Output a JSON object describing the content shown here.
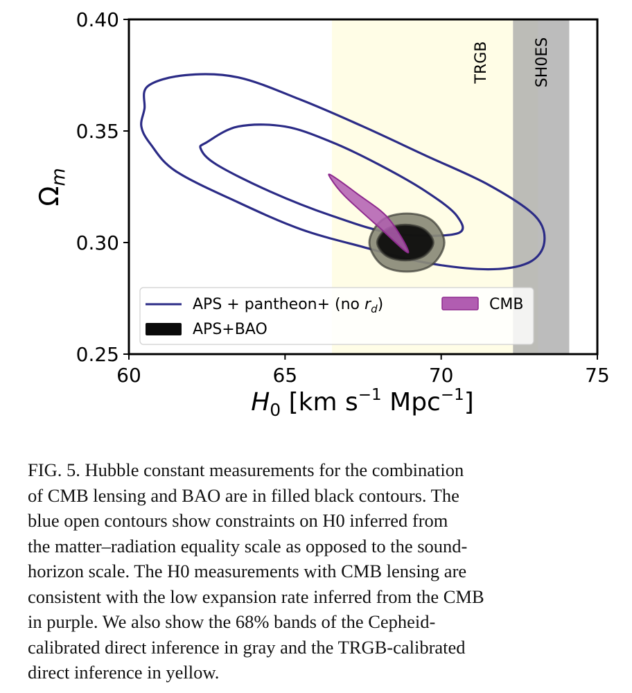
{
  "chart_data": {
    "type": "contour",
    "xlabel": "H_0 [km s^-1 Mpc^-1]",
    "ylabel": "Ω_m",
    "xlim": [
      60,
      75
    ],
    "ylim": [
      0.25,
      0.4
    ],
    "xticks": [
      60,
      65,
      70,
      75
    ],
    "xtick_labels": [
      "60",
      "65",
      "70",
      "75"
    ],
    "yticks": [
      0.25,
      0.3,
      0.35,
      0.4
    ],
    "ytick_labels": [
      "0.25",
      "0.30",
      "0.35",
      "0.40"
    ],
    "grid": false,
    "legend_position": "lower-left",
    "bands": [
      {
        "label": "TRGB",
        "x_range": [
          66.5,
          73.1
        ],
        "color": "#fffde6"
      },
      {
        "label": "SH0ES",
        "x_range": [
          72.3,
          74.1
        ],
        "color": "#a9a9a9"
      }
    ],
    "series": [
      {
        "name": "APS + pantheon+ (no r_d)",
        "kind": "open-contour",
        "color": "#2b2b86",
        "contours": [
          {
            "level": "68%",
            "points": [
              [
                62.5,
                0.345
              ],
              [
                63.5,
                0.352
              ],
              [
                65.0,
                0.352
              ],
              [
                66.5,
                0.345
              ],
              [
                68.0,
                0.335
              ],
              [
                69.5,
                0.323
              ],
              [
                70.5,
                0.312
              ],
              [
                70.5,
                0.304
              ],
              [
                68.5,
                0.304
              ],
              [
                66.5,
                0.312
              ],
              [
                64.5,
                0.323
              ],
              [
                62.8,
                0.335
              ],
              [
                62.3,
                0.342
              ]
            ]
          },
          {
            "level": "95%",
            "points": [
              [
                60.5,
                0.36
              ],
              [
                60.6,
                0.37
              ],
              [
                61.8,
                0.375
              ],
              [
                63.5,
                0.374
              ],
              [
                65.5,
                0.364
              ],
              [
                67.5,
                0.352
              ],
              [
                69.5,
                0.339
              ],
              [
                71.5,
                0.326
              ],
              [
                73.0,
                0.312
              ],
              [
                73.3,
                0.3
              ],
              [
                72.8,
                0.291
              ],
              [
                71.5,
                0.288
              ],
              [
                69.5,
                0.291
              ],
              [
                67.5,
                0.298
              ],
              [
                65.5,
                0.306
              ],
              [
                63.5,
                0.318
              ],
              [
                61.5,
                0.332
              ],
              [
                60.7,
                0.344
              ],
              [
                60.4,
                0.352
              ]
            ]
          }
        ]
      },
      {
        "name": "APS+BAO",
        "kind": "filled-contour",
        "color": "#0a0a0a",
        "contours": [
          {
            "level": "95%",
            "fill": "#8a8a78",
            "points": [
              [
                68.9,
                0.287
              ],
              [
                69.7,
                0.29
              ],
              [
                70.1,
                0.3
              ],
              [
                69.7,
                0.31
              ],
              [
                68.9,
                0.313
              ],
              [
                68.1,
                0.31
              ],
              [
                67.7,
                0.3
              ],
              [
                68.1,
                0.29
              ]
            ]
          },
          {
            "level": "68%",
            "fill": "#0a0a0a",
            "points": [
              [
                68.85,
                0.292
              ],
              [
                69.45,
                0.294
              ],
              [
                69.75,
                0.3
              ],
              [
                69.45,
                0.306
              ],
              [
                68.85,
                0.308
              ],
              [
                68.25,
                0.306
              ],
              [
                67.95,
                0.3
              ],
              [
                68.25,
                0.294
              ]
            ]
          }
        ]
      },
      {
        "name": "CMB",
        "kind": "filled-contour",
        "color": "#9b2e9b",
        "contours": [
          {
            "level": "95%",
            "fill": "#b15db1",
            "points": [
              [
                66.5,
                0.33
              ],
              [
                67.3,
                0.322
              ],
              [
                68.3,
                0.311
              ],
              [
                68.95,
                0.2955
              ],
              [
                68.0,
                0.307
              ],
              [
                66.9,
                0.321
              ],
              [
                66.45,
                0.329
              ]
            ]
          }
        ]
      }
    ]
  },
  "axes": {
    "x_title_main": "H",
    "x_title_sub": "0",
    "x_title_rest": " [km s",
    "x_title_sup1": "−1",
    "x_title_mid": " Mpc",
    "x_title_sup2": "−1",
    "x_title_end": "]",
    "y_title_main": "Ω",
    "y_title_sub": "m"
  },
  "legend": {
    "item1_main": "APS + pantheon+ (no ",
    "item1_r": "r",
    "item1_sub": "d",
    "item1_end": ")",
    "item2": "APS+BAO",
    "item3": "CMB"
  },
  "caption": {
    "lines": [
      "FIG. 5. Hubble constant measurements for the combination",
      "of CMB lensing and BAO are in filled black contours. The",
      "blue open contours show constraints on H0 inferred from",
      "the matter–radiation equality scale as opposed to the sound-",
      "horizon scale. The H0 measurements with CMB lensing are",
      "consistent with the low expansion rate inferred from the CMB",
      "in purple. We also show the 68% bands of the Cepheid-",
      "calibrated direct inference in gray and the TRGB-calibrated",
      "direct inference in yellow."
    ]
  }
}
